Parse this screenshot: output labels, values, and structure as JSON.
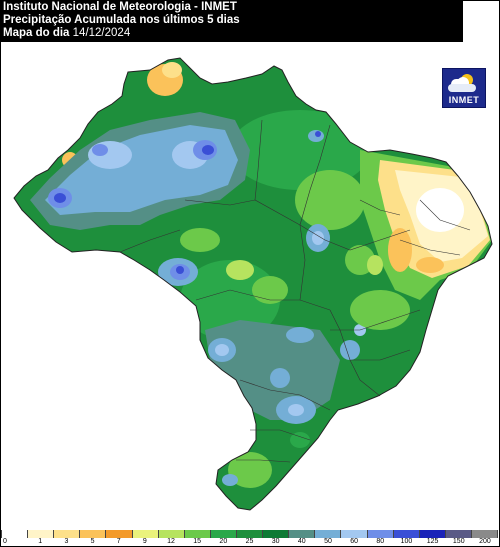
{
  "header": {
    "line1": "Instituto Nacional de Meteorologia - INMET",
    "line2": "Precipitação Acumulada nos últimos 5 dias",
    "line3_label": "Mapa do dia",
    "line3_date": "14/12/2024"
  },
  "logo": {
    "text": "INMET",
    "icon": "sun-cloud-icon"
  },
  "legend": {
    "labels": [
      "0",
      "1",
      "3",
      "5",
      "7",
      "9",
      "12",
      "15",
      "20",
      "25",
      "30",
      "40",
      "50",
      "60",
      "80",
      "100",
      "125",
      "150",
      "200"
    ],
    "colors": [
      "#ffffff",
      "#fff4c8",
      "#fde08a",
      "#fbc25a",
      "#f39a2a",
      "#eaf27c",
      "#b6e35f",
      "#6cc94a",
      "#2aa84a",
      "#1e8f3c",
      "#0e7a35",
      "#548f86",
      "#74aed6",
      "#a3c8f0",
      "#6f8ee8",
      "#3a4fd6",
      "#1a22b8",
      "#5a5a86",
      "#8a8a8a"
    ]
  },
  "colors": {
    "header_bg": "#000000",
    "header_text": "#ffffff",
    "border": "#000000"
  }
}
